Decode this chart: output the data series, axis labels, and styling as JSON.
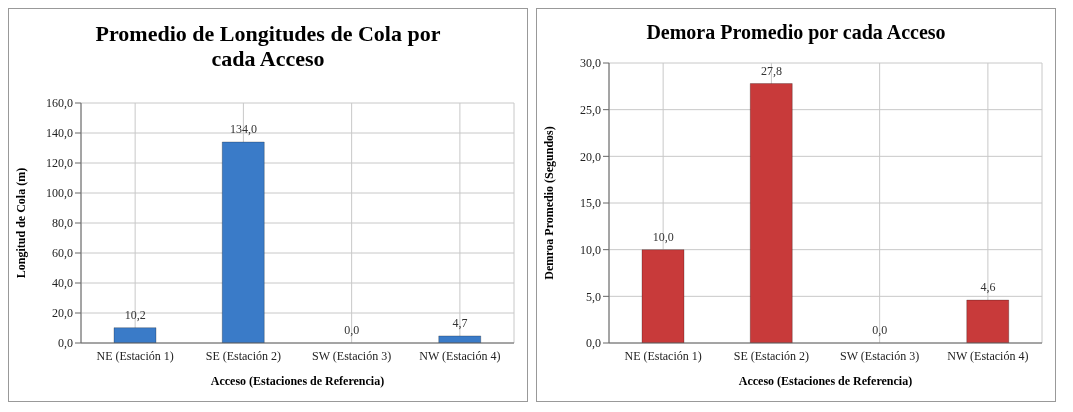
{
  "chart_data": [
    {
      "type": "bar",
      "title": "Promedio de Longitudes de Cola por cada Acceso",
      "xlabel": "Acceso (Estaciones de Referencia)",
      "ylabel": "Longitud de Cola (m)",
      "categories": [
        "NE (Estación 1)",
        "SE (Estación 2)",
        "SW (Estación 3)",
        "NW (Estación 4)"
      ],
      "values": [
        10.2,
        134.0,
        0.0,
        4.7
      ],
      "value_labels": [
        "10,2",
        "134,0",
        "0,0",
        "4,7"
      ],
      "color": "#3a7bc8",
      "ylim": [
        0,
        160
      ],
      "yticks": [
        {
          "value": 0,
          "label": "0,0"
        },
        {
          "value": 20,
          "label": "20,0"
        },
        {
          "value": 40,
          "label": "40,0"
        },
        {
          "value": 60,
          "label": "60,0"
        },
        {
          "value": 80,
          "label": "80,0"
        },
        {
          "value": 100,
          "label": "100,0"
        },
        {
          "value": 120,
          "label": "120,0"
        },
        {
          "value": 140,
          "label": "140,0"
        },
        {
          "value": 160,
          "label": "160,0"
        }
      ],
      "grid": true,
      "legend": false
    },
    {
      "type": "bar",
      "title": "Demora Promedio por cada Acceso",
      "xlabel": "Acceso (Estaciones de Referencia)",
      "ylabel": "Demroa Promedio (Segundos)",
      "categories": [
        "NE (Estación 1)",
        "SE (Estación 2)",
        "SW (Estación 3)",
        "NW (Estación 4)"
      ],
      "values": [
        10.0,
        27.8,
        0.0,
        4.6
      ],
      "value_labels": [
        "10,0",
        "27,8",
        "0,0",
        "4,6"
      ],
      "color": "#c83a3a",
      "ylim": [
        0,
        30
      ],
      "yticks": [
        {
          "value": 0,
          "label": "0,0"
        },
        {
          "value": 5,
          "label": "5,0"
        },
        {
          "value": 10,
          "label": "10,0"
        },
        {
          "value": 15,
          "label": "15,0"
        },
        {
          "value": 20,
          "label": "20,0"
        },
        {
          "value": 25,
          "label": "25,0"
        },
        {
          "value": 30,
          "label": "30,0"
        }
      ],
      "grid": true,
      "legend": false
    }
  ]
}
